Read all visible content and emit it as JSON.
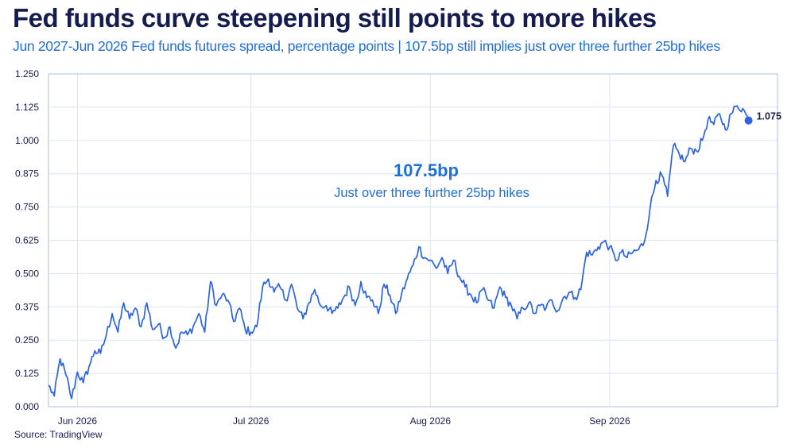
{
  "header": {
    "title": "Fed funds curve steepening still points to more hikes",
    "subtitle": "Jun 2027-Jun 2026 Fed funds futures spread, percentage points | 107.5bp still implies just over three further 25bp hikes"
  },
  "footer": {
    "source": "Source: TradingView"
  },
  "colors": {
    "line": "#2b63e0",
    "text_dark": "#151d4e",
    "accent_blue": "#1f6fd6",
    "grid": "#dce6f5",
    "axis": "#a9bfe0"
  },
  "chart_data": {
    "type": "line",
    "title": "Fed funds curve steepening still points to more hikes",
    "ylabel": "",
    "xlabel": "",
    "ylim": [
      0,
      1.25
    ],
    "xlim": [
      "2026-05-27",
      "2026-09-30"
    ],
    "grid": true,
    "y_ticks": [
      0,
      0.125,
      0.25,
      0.375,
      0.5,
      0.625,
      0.75,
      0.875,
      1.0,
      1.125,
      1.25
    ],
    "y_tick_labels": [
      "0.000",
      "0.125",
      "0.250",
      "0.375",
      "0.500",
      "0.625",
      "0.750",
      "0.875",
      "1.000",
      "1.125",
      "1.250"
    ],
    "x_ticks": [
      {
        "date": "2026-06-01",
        "label": "Jun 2026"
      },
      {
        "date": "2026-07-01",
        "label": "Jul 2026"
      },
      {
        "date": "2026-08-01",
        "label": "Aug 2026"
      },
      {
        "date": "2026-09-01",
        "label": "Sep 2026"
      }
    ],
    "series": [
      {
        "x": [
          "2026-05-27",
          "2026-05-28",
          "2026-05-29",
          "2026-05-30",
          "2026-05-31",
          "2026-06-01",
          "2026-06-02",
          "2026-06-03",
          "2026-06-04",
          "2026-06-05",
          "2026-06-06",
          "2026-06-07",
          "2026-06-08",
          "2026-06-09",
          "2026-06-10",
          "2026-06-11",
          "2026-06-12",
          "2026-06-13",
          "2026-06-14",
          "2026-06-15",
          "2026-06-16",
          "2026-06-17",
          "2026-06-18",
          "2026-06-19",
          "2026-06-20",
          "2026-06-21",
          "2026-06-22",
          "2026-06-23",
          "2026-06-24",
          "2026-06-25",
          "2026-06-26",
          "2026-06-27",
          "2026-06-28",
          "2026-06-29",
          "2026-06-30",
          "2026-07-01",
          "2026-07-02",
          "2026-07-03",
          "2026-07-04",
          "2026-07-05",
          "2026-07-06",
          "2026-07-07",
          "2026-07-08",
          "2026-07-09",
          "2026-07-10",
          "2026-07-11",
          "2026-07-12",
          "2026-07-13",
          "2026-07-14",
          "2026-07-15",
          "2026-07-16",
          "2026-07-17",
          "2026-07-18",
          "2026-07-19",
          "2026-07-20",
          "2026-07-21",
          "2026-07-22",
          "2026-07-23",
          "2026-07-24",
          "2026-07-25",
          "2026-07-26",
          "2026-07-27",
          "2026-07-28",
          "2026-07-29",
          "2026-07-30",
          "2026-07-31",
          "2026-08-01",
          "2026-08-02",
          "2026-08-03",
          "2026-08-04",
          "2026-08-05",
          "2026-08-06",
          "2026-08-07",
          "2026-08-08",
          "2026-08-09",
          "2026-08-10",
          "2026-08-11",
          "2026-08-12",
          "2026-08-13",
          "2026-08-14",
          "2026-08-15",
          "2026-08-16",
          "2026-08-17",
          "2026-08-18",
          "2026-08-19",
          "2026-08-20",
          "2026-08-21",
          "2026-08-22",
          "2026-08-23",
          "2026-08-24",
          "2026-08-25",
          "2026-08-26",
          "2026-08-27",
          "2026-08-28",
          "2026-08-29",
          "2026-08-30",
          "2026-08-31",
          "2026-09-01",
          "2026-09-02",
          "2026-09-03",
          "2026-09-04",
          "2026-09-05",
          "2026-09-06",
          "2026-09-07",
          "2026-09-08",
          "2026-09-09",
          "2026-09-10",
          "2026-09-11",
          "2026-09-12",
          "2026-09-13",
          "2026-09-14",
          "2026-09-15",
          "2026-09-16",
          "2026-09-17",
          "2026-09-18",
          "2026-09-19",
          "2026-09-20",
          "2026-09-21",
          "2026-09-22",
          "2026-09-23",
          "2026-09-24",
          "2026-09-25"
        ],
        "values": [
          0.08,
          0.04,
          0.18,
          0.12,
          0.03,
          0.13,
          0.09,
          0.15,
          0.21,
          0.2,
          0.27,
          0.35,
          0.28,
          0.39,
          0.33,
          0.37,
          0.3,
          0.39,
          0.29,
          0.31,
          0.26,
          0.3,
          0.22,
          0.28,
          0.27,
          0.3,
          0.35,
          0.28,
          0.47,
          0.38,
          0.42,
          0.4,
          0.32,
          0.37,
          0.29,
          0.28,
          0.3,
          0.45,
          0.48,
          0.43,
          0.45,
          0.4,
          0.46,
          0.37,
          0.33,
          0.39,
          0.44,
          0.38,
          0.38,
          0.35,
          0.37,
          0.41,
          0.45,
          0.38,
          0.47,
          0.41,
          0.4,
          0.35,
          0.46,
          0.42,
          0.35,
          0.42,
          0.48,
          0.53,
          0.6,
          0.56,
          0.55,
          0.52,
          0.56,
          0.5,
          0.55,
          0.49,
          0.45,
          0.42,
          0.39,
          0.44,
          0.4,
          0.37,
          0.45,
          0.41,
          0.38,
          0.33,
          0.37,
          0.39,
          0.35,
          0.38,
          0.37,
          0.4,
          0.36,
          0.41,
          0.43,
          0.41,
          0.44,
          0.58,
          0.57,
          0.6,
          0.62,
          0.6,
          0.55,
          0.58,
          0.56,
          0.58,
          0.59,
          0.62,
          0.75,
          0.85,
          0.87,
          0.79,
          0.98,
          0.95,
          0.92,
          0.97,
          0.96,
          1.0,
          1.08,
          1.06,
          1.1,
          1.04,
          1.1,
          1.13,
          1.12,
          1.075
        ]
      }
    ],
    "end_label": "1.075",
    "annotation": {
      "title": "107.5bp",
      "text": "Just over three further 25bp hikes"
    }
  }
}
